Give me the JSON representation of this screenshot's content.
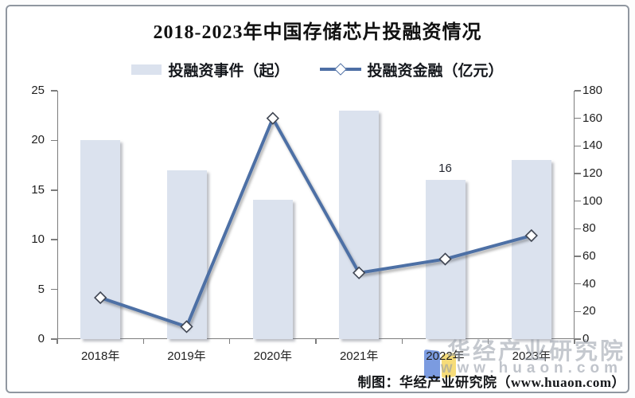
{
  "chart_data": {
    "type": "bar+line combo",
    "title": "2018-2023年中国存储芯片投融资情况",
    "categories": [
      "2018年",
      "2019年",
      "2020年",
      "2021年",
      "2022年",
      "2023年"
    ],
    "series": [
      {
        "name": "投融资事件（起）",
        "type": "bar",
        "axis": "left",
        "values": [
          20,
          17,
          14,
          23,
          16,
          18
        ]
      },
      {
        "name": "投融资金融（亿元）",
        "type": "line",
        "axis": "right",
        "values": [
          30,
          9,
          160,
          48,
          58,
          75
        ]
      }
    ],
    "left_axis": {
      "min": 0,
      "max": 25,
      "step": 5,
      "tick_labels": [
        "0",
        "5",
        "10",
        "15",
        "20",
        "25"
      ]
    },
    "right_axis": {
      "min": 0,
      "max": 180,
      "step": 20,
      "tick_labels": [
        "0",
        "20",
        "40",
        "60",
        "80",
        "100",
        "120",
        "140",
        "160",
        "180"
      ]
    },
    "data_labels": [
      {
        "category": "2022年",
        "series": "投融资事件（起）",
        "text": "16"
      }
    ],
    "grid": "off",
    "legend_position": "top-center",
    "colors": {
      "bar": "#dbe2ee",
      "line": "#4e6fa5",
      "marker_fill": "#ffffff",
      "marker_stroke": "#3f4552",
      "axis": "#7c7c7c"
    }
  },
  "legend": {
    "items": [
      {
        "label": "投融资事件（起）",
        "swatch": "bar"
      },
      {
        "label": "投融资金融（亿元）",
        "swatch": "line"
      }
    ]
  },
  "footer": {
    "caption": "制图：华经产业研究院（www.huaon.com）"
  },
  "watermark": {
    "line1": "华经产业研究院",
    "line2": "www.huaon.com",
    "logo": "huaon-logo"
  }
}
